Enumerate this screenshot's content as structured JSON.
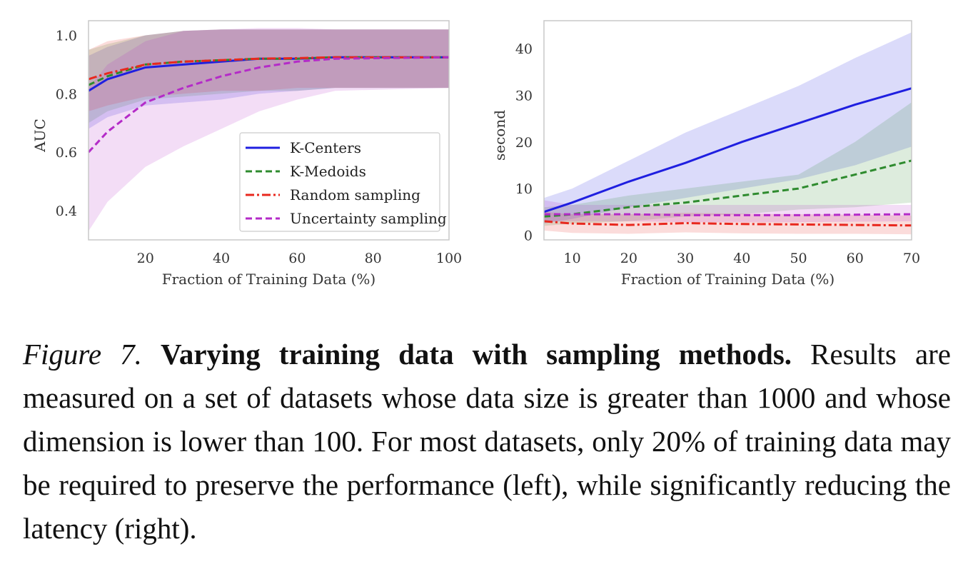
{
  "chart_data": [
    {
      "type": "line",
      "id": "auc",
      "title": "",
      "xlabel": "Fraction of Training Data (%)",
      "ylabel": "AUC",
      "xlim": [
        5,
        100
      ],
      "ylim": [
        0.3,
        1.05
      ],
      "xticks": [
        20,
        40,
        60,
        80,
        100
      ],
      "yticks": [
        0.4,
        0.6,
        0.8,
        1.0
      ],
      "ytick_labels": [
        "0.4",
        "0.6",
        "0.8",
        "1.0"
      ],
      "grid": false,
      "legend_position": "lower-right",
      "series": [
        {
          "name": "K-Centers",
          "color": "#1f1fe0",
          "dash": "solid",
          "x": [
            5,
            10,
            20,
            30,
            40,
            50,
            60,
            70,
            100
          ],
          "y": [
            0.81,
            0.85,
            0.89,
            0.9,
            0.91,
            0.92,
            0.92,
            0.925,
            0.925
          ],
          "lower": [
            0.68,
            0.72,
            0.76,
            0.77,
            0.78,
            0.8,
            0.81,
            0.82,
            0.82
          ],
          "upper": [
            0.93,
            0.96,
            1.0,
            1.015,
            1.02,
            1.02,
            1.02,
            1.02,
            1.02
          ]
        },
        {
          "name": "K-Medoids",
          "color": "#2e8b2e",
          "dash": "dashed",
          "x": [
            5,
            10,
            20,
            30,
            40,
            50,
            60,
            70,
            100
          ],
          "y": [
            0.83,
            0.86,
            0.9,
            0.91,
            0.915,
            0.92,
            0.92,
            0.925,
            0.925
          ],
          "lower": [
            0.7,
            0.74,
            0.78,
            0.79,
            0.8,
            0.81,
            0.81,
            0.82,
            0.82
          ],
          "upper": [
            0.95,
            0.97,
            1.0,
            1.015,
            1.02,
            1.02,
            1.02,
            1.02,
            1.02
          ]
        },
        {
          "name": "Random sampling",
          "color": "#e8281e",
          "dash": "dashdot",
          "x": [
            5,
            10,
            20,
            30,
            40,
            50,
            60,
            70,
            100
          ],
          "y": [
            0.85,
            0.87,
            0.9,
            0.91,
            0.915,
            0.92,
            0.922,
            0.925,
            0.925
          ],
          "lower": [
            0.74,
            0.76,
            0.79,
            0.8,
            0.81,
            0.81,
            0.82,
            0.82,
            0.82
          ],
          "upper": [
            0.95,
            0.98,
            1.0,
            1.015,
            1.02,
            1.02,
            1.02,
            1.02,
            1.02
          ]
        },
        {
          "name": "Uncertainty sampling",
          "color": "#b42bc8",
          "dash": "dashed",
          "x": [
            5,
            10,
            20,
            30,
            40,
            50,
            60,
            70,
            100
          ],
          "y": [
            0.6,
            0.67,
            0.77,
            0.82,
            0.86,
            0.89,
            0.91,
            0.92,
            0.925
          ],
          "lower": [
            0.33,
            0.43,
            0.55,
            0.62,
            0.68,
            0.74,
            0.78,
            0.81,
            0.82
          ],
          "upper": [
            0.82,
            0.9,
            0.98,
            1.015,
            1.02,
            1.025,
            1.025,
            1.02,
            1.02
          ]
        }
      ]
    },
    {
      "type": "line",
      "id": "latency",
      "title": "",
      "xlabel": "Fraction of Training Data (%)",
      "ylabel": "second",
      "xlim": [
        5,
        70
      ],
      "ylim": [
        -1,
        46
      ],
      "xticks": [
        10,
        20,
        30,
        40,
        50,
        60,
        70
      ],
      "yticks": [
        0,
        10,
        20,
        30,
        40
      ],
      "ytick_labels": [
        "0",
        "10",
        "20",
        "30",
        "40"
      ],
      "grid": false,
      "legend_position": "none",
      "series": [
        {
          "name": "K-Centers",
          "color": "#1f1fe0",
          "dash": "solid",
          "x": [
            5,
            10,
            20,
            30,
            40,
            50,
            60,
            70
          ],
          "y": [
            5,
            7,
            11.5,
            15.5,
            20,
            24,
            28,
            31.5
          ],
          "lower": [
            2.5,
            3.5,
            6,
            8,
            10,
            12,
            15,
            19
          ],
          "upper": [
            8,
            10,
            16,
            22,
            27,
            32,
            38,
            43.5
          ]
        },
        {
          "name": "K-Medoids",
          "color": "#2e8b2e",
          "dash": "dashed",
          "x": [
            5,
            10,
            20,
            30,
            40,
            50,
            60,
            70
          ],
          "y": [
            4,
            4.5,
            6,
            7,
            8.5,
            10,
            13,
            16
          ],
          "lower": [
            2,
            2.5,
            3,
            4,
            4.5,
            5.5,
            6,
            7
          ],
          "upper": [
            6,
            6.5,
            8.5,
            10,
            11.5,
            13,
            20,
            28.5
          ]
        },
        {
          "name": "Random sampling",
          "color": "#e8281e",
          "dash": "dashdot",
          "x": [
            5,
            10,
            20,
            30,
            40,
            50,
            60,
            70
          ],
          "y": [
            3,
            2.5,
            2.2,
            2.6,
            2.4,
            2.3,
            2.2,
            2.1
          ],
          "lower": [
            1,
            0.5,
            0.3,
            0.6,
            0.4,
            0.3,
            0.3,
            0.2
          ],
          "upper": [
            5,
            4.5,
            4.5,
            4.8,
            4.6,
            4.5,
            4.4,
            4.2
          ]
        },
        {
          "name": "Uncertainty sampling",
          "color": "#b42bc8",
          "dash": "dashed",
          "x": [
            5,
            10,
            20,
            30,
            40,
            50,
            60,
            70
          ],
          "y": [
            4.5,
            4.5,
            4.5,
            4.3,
            4.3,
            4.3,
            4.4,
            4.5
          ],
          "lower": [
            3,
            3,
            3,
            2.8,
            2.8,
            2.8,
            2.9,
            3
          ],
          "upper": [
            7.5,
            6.5,
            6.5,
            6.5,
            6.5,
            6.5,
            6.5,
            6.5
          ]
        }
      ]
    }
  ],
  "caption": {
    "label": "Figure 7.",
    "title": "Varying training data with sampling methods.",
    "body": "Results are measured on a set of datasets whose data size is greater than 1000 and whose dimension is lower than 100. For most datasets, only 20% of training data may be required to preserve the performance (left), while significantly reducing the latency (right)."
  }
}
